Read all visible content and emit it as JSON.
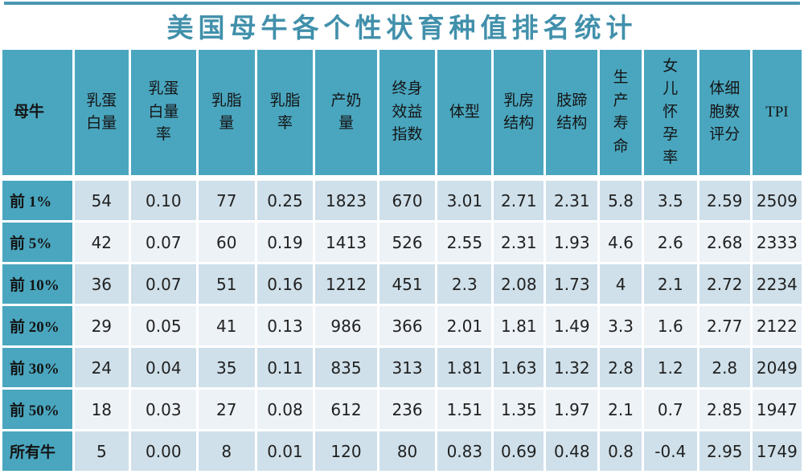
{
  "page": {
    "title": "美国母牛各个性状育种值排名统计"
  },
  "colors": {
    "header_teal": "#4AA6BF",
    "title_teal": "#4190AB",
    "top_line_teal": "#4A97B2",
    "row_odd_bg": "#CFE0EA",
    "row_even_bg": "#EDF2F7",
    "gridline": "#FFFFFF",
    "text": "#212121"
  },
  "chart_data": {
    "type": "table",
    "title": "美国母牛各个性状育种值排名统计",
    "columns": [
      "母牛",
      "乳蛋白量",
      "乳蛋白量率",
      "乳脂量",
      "乳脂率",
      "产奶量",
      "终身效益指数",
      "体型",
      "乳房结构",
      "肢蹄结构",
      "生产寿命",
      "女儿怀孕率",
      "体细胞数评分",
      "TPI"
    ],
    "columns_display": [
      "母牛",
      "乳蛋\n白量",
      "乳蛋\n白量\n率",
      "乳脂\n量",
      "乳脂\n率",
      "产奶\n量",
      "终身\n效益\n指数",
      "体型",
      "乳房\n结构",
      "肢蹄\n结构",
      "生\n产\n寿\n命",
      "女\n儿\n怀\n孕\n率",
      "体细\n胞数\n评分",
      "TPI"
    ],
    "rows": [
      {
        "label": "前 1%",
        "values": [
          "54",
          "0.10",
          "77",
          "0.25",
          "1823",
          "670",
          "3.01",
          "2.71",
          "2.31",
          "5.8",
          "3.5",
          "2.59",
          "2509"
        ]
      },
      {
        "label": "前 5%",
        "values": [
          "42",
          "0.07",
          "60",
          "0.19",
          "1413",
          "526",
          "2.55",
          "2.31",
          "1.93",
          "4.6",
          "2.6",
          "2.68",
          "2333"
        ]
      },
      {
        "label": "前 10%",
        "values": [
          "36",
          "0.07",
          "51",
          "0.16",
          "1212",
          "451",
          "2.3",
          "2.08",
          "1.73",
          "4",
          "2.1",
          "2.72",
          "2234"
        ]
      },
      {
        "label": "前 20%",
        "values": [
          "29",
          "0.05",
          "41",
          "0.13",
          "986",
          "366",
          "2.01",
          "1.81",
          "1.49",
          "3.3",
          "1.6",
          "2.77",
          "2122"
        ]
      },
      {
        "label": "前 30%",
        "values": [
          "24",
          "0.04",
          "35",
          "0.11",
          "835",
          "313",
          "1.81",
          "1.63",
          "1.32",
          "2.8",
          "1.2",
          "2.8",
          "2049"
        ]
      },
      {
        "label": "前 50%",
        "values": [
          "18",
          "0.03",
          "27",
          "0.08",
          "612",
          "236",
          "1.51",
          "1.35",
          "1.97",
          "2.1",
          "0.7",
          "2.85",
          "1947"
        ]
      },
      {
        "label": "所有牛",
        "values": [
          "5",
          "0.00",
          "8",
          "0.01",
          "120",
          "80",
          "0.83",
          "0.69",
          "0.48",
          "0.8",
          "-0.4",
          "2.95",
          "1749"
        ]
      }
    ]
  }
}
